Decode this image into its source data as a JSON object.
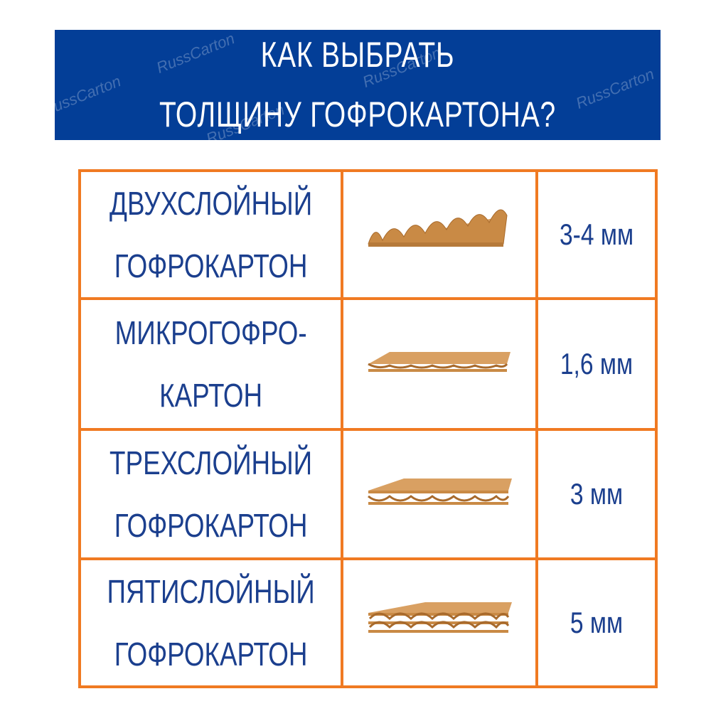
{
  "header": {
    "line1": "КАК ВЫБРАТЬ",
    "line2": "ТОЛЩИНУ ГОФРОКАРТОНА?",
    "watermark": "RussCarton"
  },
  "colors": {
    "banner": "#033e97",
    "border": "#f07a22",
    "text": "#1b3f8e",
    "cardboard": "#c98a45"
  },
  "rows": [
    {
      "line1": "ДВУХСЛОЙНЫЙ",
      "line2": "ГОФРОКАРТОН",
      "thickness": "3-4 мм",
      "layers": 1,
      "type": "single-face"
    },
    {
      "line1": "МИКРОГОФРО-",
      "line2": "КАРТОН",
      "thickness": "1,6 мм",
      "layers": 1,
      "type": "micro"
    },
    {
      "line1": "ТРЕХСЛОЙНЫЙ",
      "line2": "ГОФРОКАРТОН",
      "thickness": "3 мм",
      "layers": 1,
      "type": "three-layer"
    },
    {
      "line1": "ПЯТИСЛОЙНЫЙ",
      "line2": "ГОФРОКАРТОН",
      "thickness": "5 мм",
      "layers": 2,
      "type": "five-layer"
    }
  ]
}
